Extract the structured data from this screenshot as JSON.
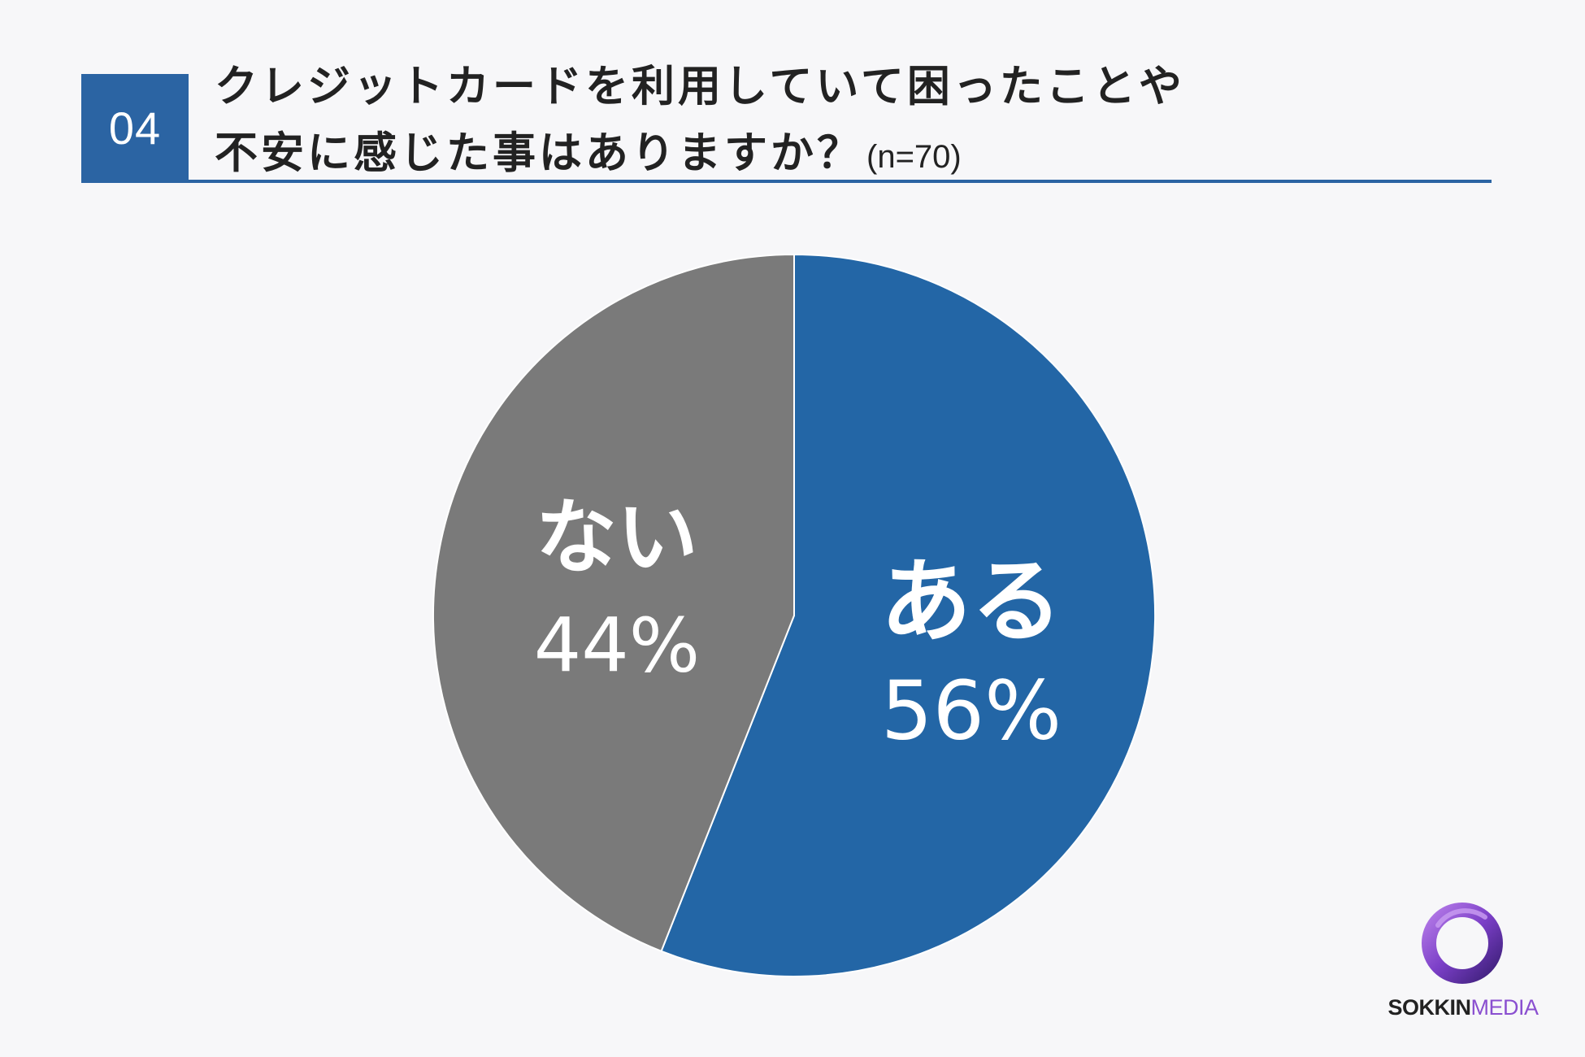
{
  "header": {
    "question_number": "04",
    "title_line1": "クレジットカードを利用していて困ったことや",
    "title_line2": "不安に感じた事はありますか？",
    "sample_size": "(n=70)",
    "accent_color": "#2b64a3"
  },
  "chart_data": {
    "type": "pie",
    "slices": [
      {
        "label": "ある",
        "value": 56,
        "value_label": "56%",
        "color": "#2366a6"
      },
      {
        "label": "ない",
        "value": 44,
        "value_label": "44%",
        "color": "#7a7a7a"
      }
    ],
    "start": "12 o'clock",
    "direction": "clockwise"
  },
  "brand": {
    "name_part1": "SOKKIN",
    "name_part2": "MEDIA",
    "logo_icon": "ring-logo-icon",
    "color": "#8a4fd0"
  }
}
